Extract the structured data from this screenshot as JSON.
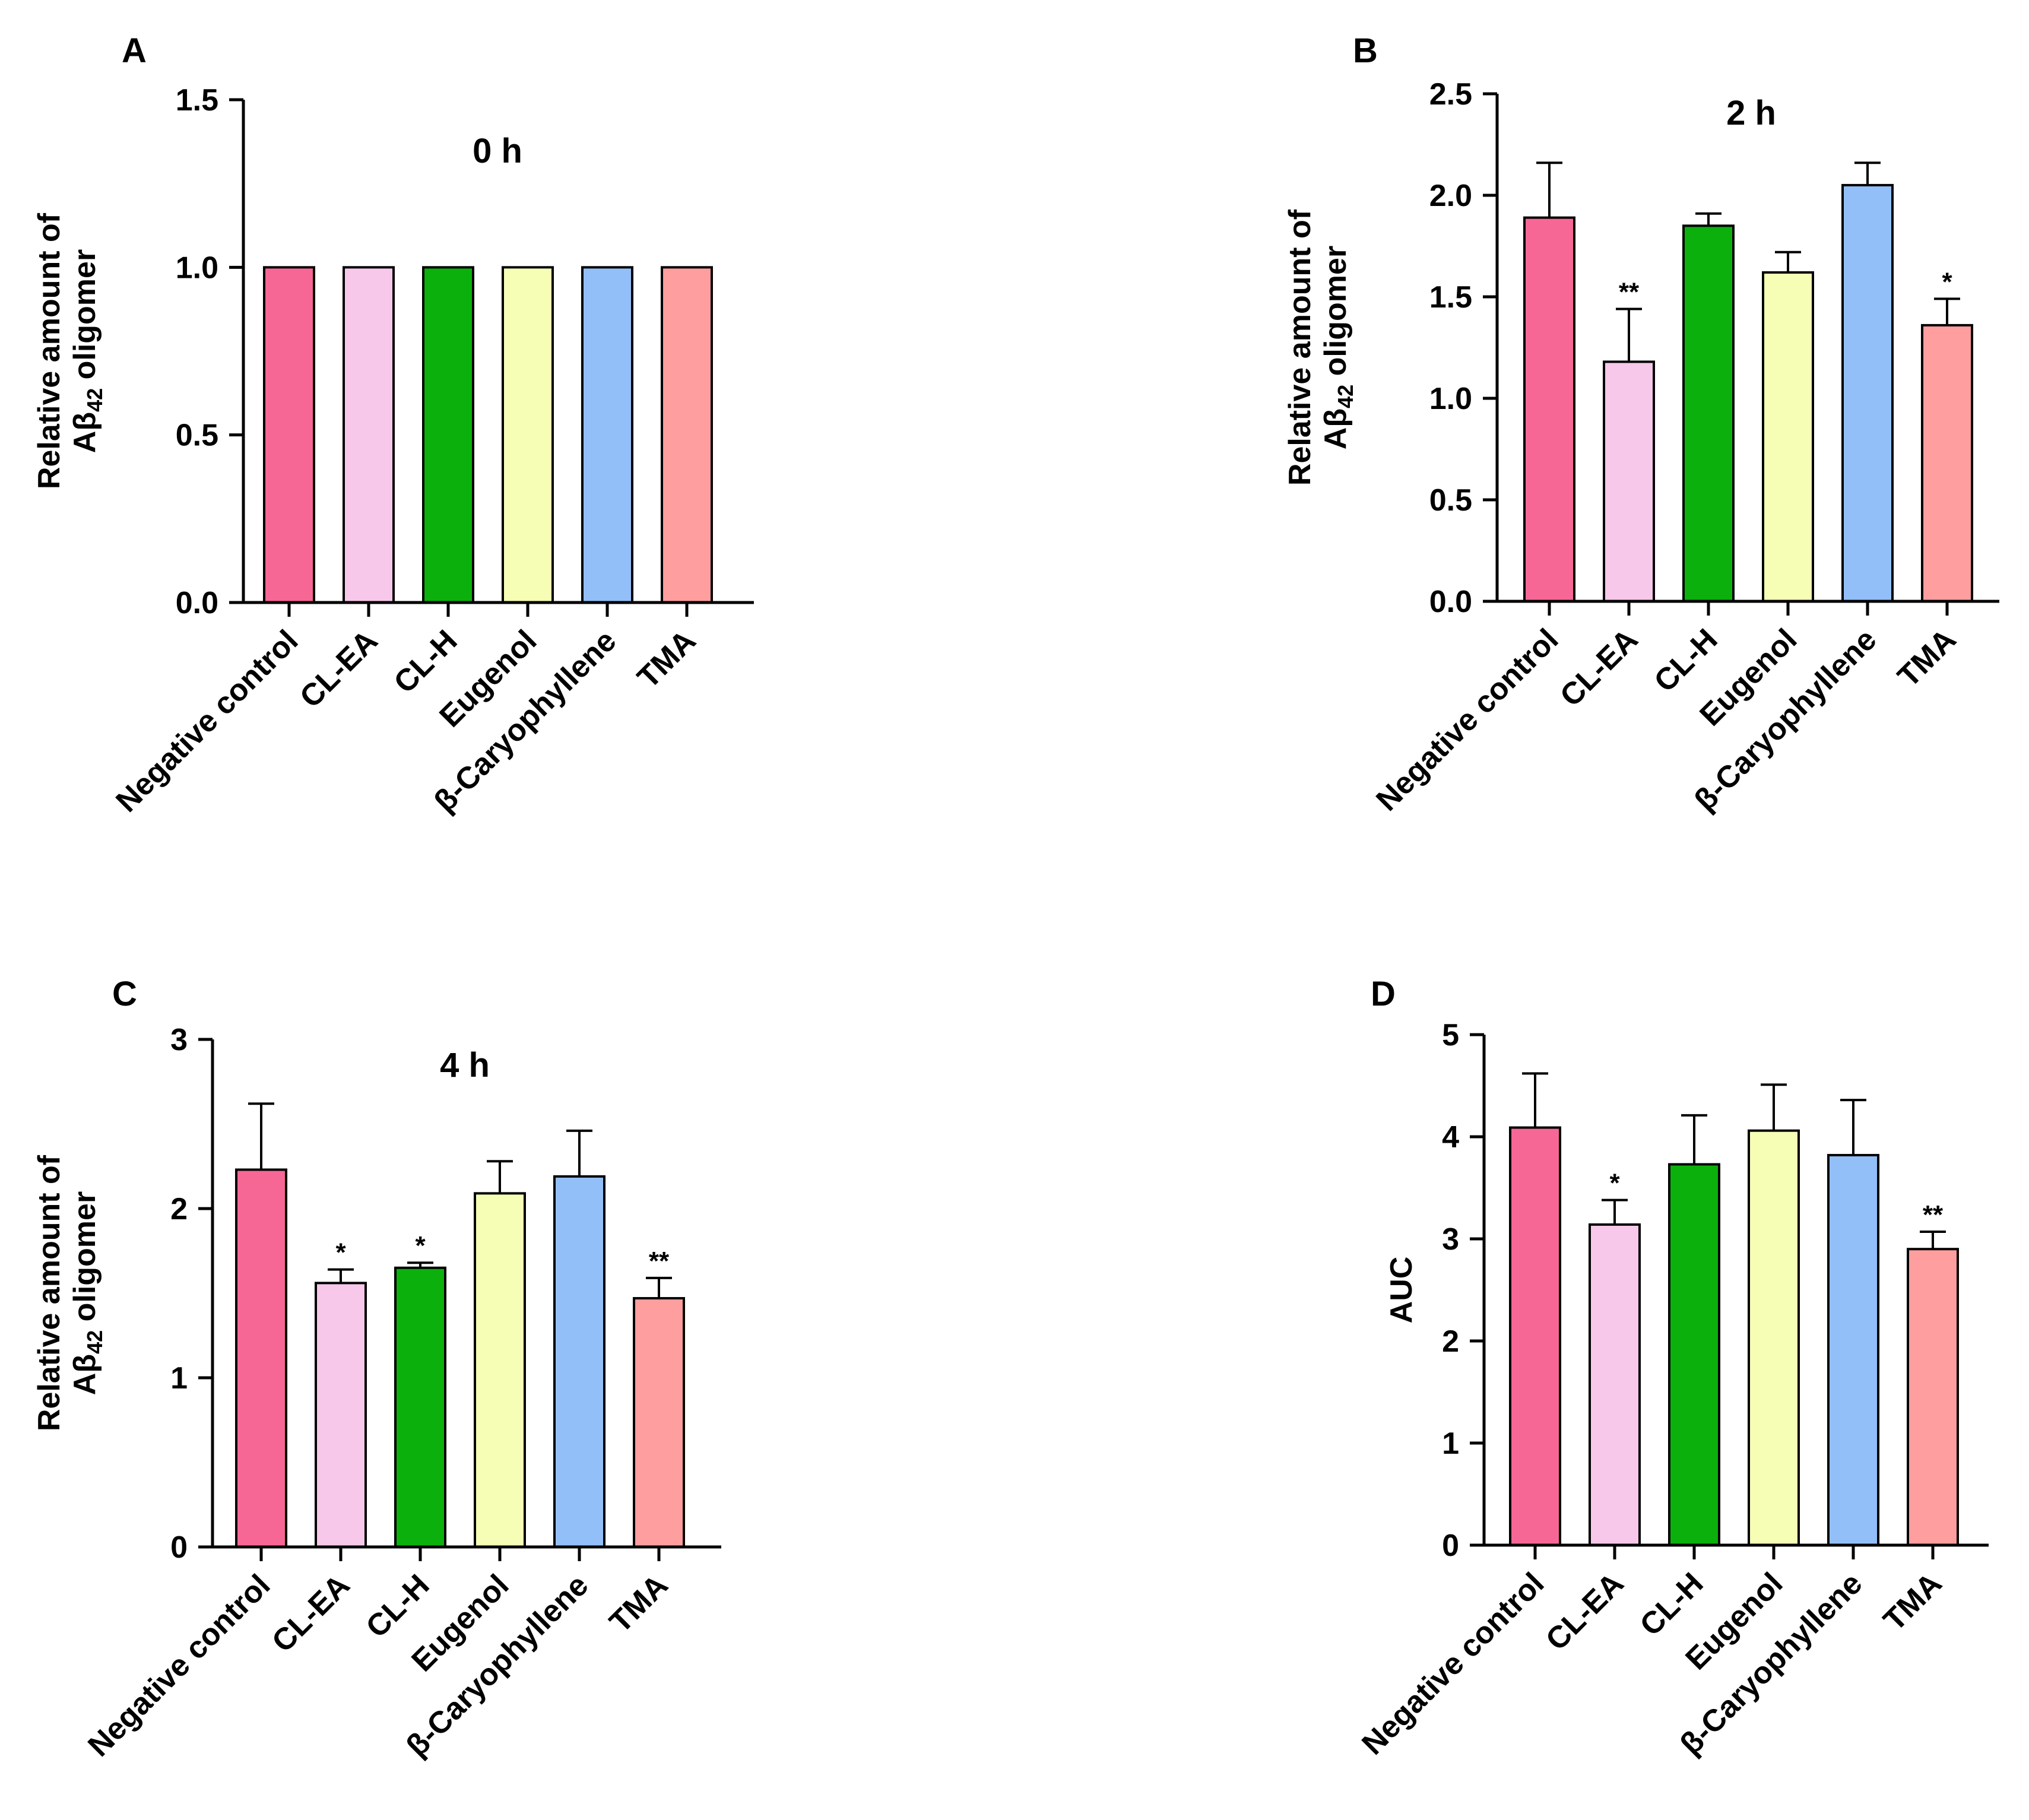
{
  "chart_data": [
    {
      "type": "bar",
      "panel": "A",
      "title": "0 h",
      "ylabel_line1": "Relative amount of",
      "ylabel_line2_prefix": "Aβ",
      "ylabel_line2_sub": "42",
      "ylabel_line2_suffix": " oligomer",
      "ylim": [
        0,
        1.5
      ],
      "ytick_values": [
        0,
        0.5,
        1.0,
        1.5
      ],
      "ytick_labels": [
        "0.0",
        "0.5",
        "1.0",
        "1.5"
      ],
      "categories": [
        "Negative control",
        "CL-EA",
        "CL-H",
        "Eugenol",
        "β-Caryophyllene",
        "TMA"
      ],
      "values": [
        1.0,
        1.0,
        1.0,
        1.0,
        1.0,
        1.0
      ],
      "errors": [
        0,
        0,
        0,
        0,
        0,
        0
      ],
      "significance": [
        "",
        "",
        "",
        "",
        "",
        ""
      ]
    },
    {
      "type": "bar",
      "panel": "B",
      "title": "2 h",
      "ylabel_line1": "Relative amount of",
      "ylabel_line2_prefix": "Aβ",
      "ylabel_line2_sub": "42",
      "ylabel_line2_suffix": " oligomer",
      "ylim": [
        0,
        2.5
      ],
      "ytick_values": [
        0,
        0.5,
        1.0,
        1.5,
        2.0,
        2.5
      ],
      "ytick_labels": [
        "0.0",
        "0.5",
        "1.0",
        "1.5",
        "2.0",
        "2.5"
      ],
      "categories": [
        "Negative control",
        "CL-EA",
        "CL-H",
        "Eugenol",
        "β-Caryophyllene",
        "TMA"
      ],
      "values": [
        1.89,
        1.18,
        1.85,
        1.62,
        2.05,
        1.36
      ],
      "errors": [
        0.27,
        0.26,
        0.06,
        0.1,
        0.11,
        0.13
      ],
      "significance": [
        "",
        "**",
        "",
        "",
        "",
        "*"
      ]
    },
    {
      "type": "bar",
      "panel": "C",
      "title": "4 h",
      "ylabel_line1": "Relative amount of",
      "ylabel_line2_prefix": "Aβ",
      "ylabel_line2_sub": "42",
      "ylabel_line2_suffix": " oligomer",
      "ylim": [
        0,
        3
      ],
      "ytick_values": [
        0,
        1,
        2,
        3
      ],
      "ytick_labels": [
        "0",
        "1",
        "2",
        "3"
      ],
      "categories": [
        "Negative control",
        "CL-EA",
        "CL-H",
        "Eugenol",
        "β-Caryophyllene",
        "TMA"
      ],
      "values": [
        2.23,
        1.56,
        1.65,
        2.09,
        2.19,
        1.47
      ],
      "errors": [
        0.39,
        0.08,
        0.03,
        0.19,
        0.27,
        0.12
      ],
      "significance": [
        "",
        "*",
        "*",
        "",
        "",
        "**"
      ]
    },
    {
      "type": "bar",
      "panel": "D",
      "title": "",
      "ylabel_line1": "AUC",
      "ylabel_line2_prefix": "",
      "ylabel_line2_sub": "",
      "ylabel_line2_suffix": "",
      "ylim": [
        0,
        5
      ],
      "ytick_values": [
        0,
        1,
        2,
        3,
        4,
        5
      ],
      "ytick_labels": [
        "0",
        "1",
        "2",
        "3",
        "4",
        "5"
      ],
      "categories": [
        "Negative control",
        "CL-EA",
        "CL-H",
        "Eugenol",
        "β-Caryophyllene",
        "TMA"
      ],
      "values": [
        4.09,
        3.14,
        3.73,
        4.06,
        3.82,
        2.9
      ],
      "errors": [
        0.53,
        0.24,
        0.48,
        0.45,
        0.54,
        0.17
      ],
      "significance": [
        "",
        "*",
        "",
        "",
        "",
        "**"
      ]
    }
  ],
  "colors": [
    "#f76796",
    "#f7c8ea",
    "#0bb00c",
    "#f6feb6",
    "#93bff8",
    "#fe9e9e"
  ]
}
